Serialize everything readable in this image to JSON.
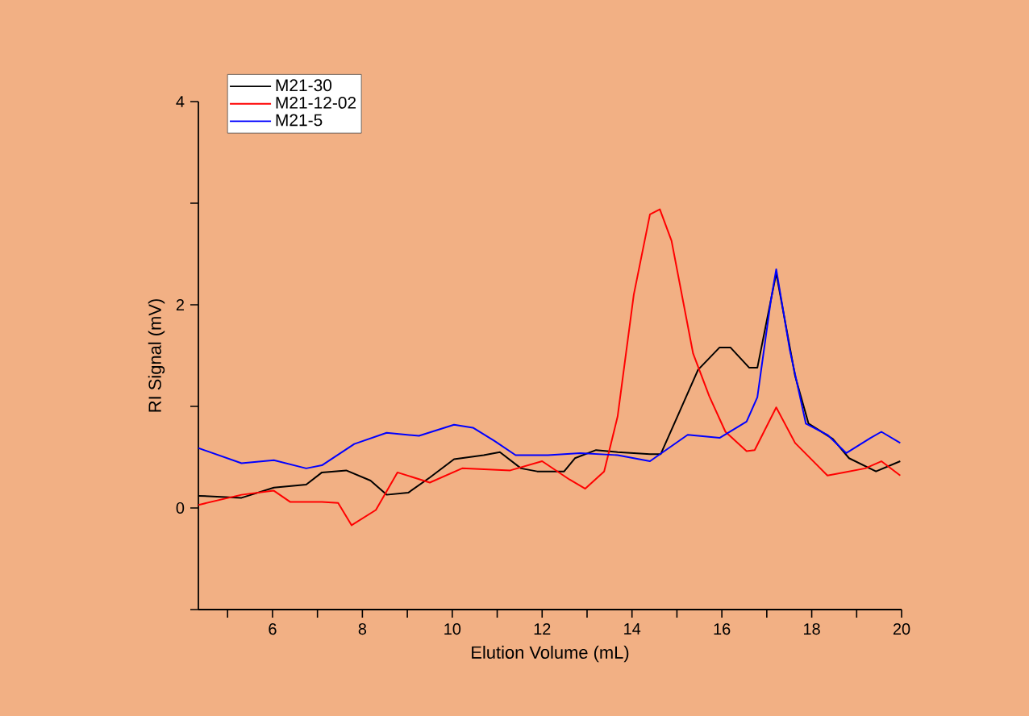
{
  "chart_data": {
    "type": "line",
    "xlabel": "Elution Volume (mL)",
    "ylabel": "RI Signal (mV)",
    "xlim": [
      4.35,
      20
    ],
    "ylim": [
      -1,
      4
    ],
    "xticks": [
      {
        "value": 5,
        "label": null
      },
      6,
      {
        "value": 7,
        "label": null
      },
      8,
      {
        "value": 9,
        "label": null
      },
      10,
      {
        "value": 11,
        "label": null
      },
      12,
      {
        "value": 13,
        "label": null
      },
      14,
      {
        "value": 15,
        "label": null
      },
      16,
      {
        "value": 17,
        "label": null
      },
      18,
      {
        "value": 19,
        "label": null
      },
      20
    ],
    "yticks": [
      {
        "value": -1,
        "label": null
      },
      0,
      {
        "value": 1,
        "label": null
      },
      2,
      {
        "value": 3,
        "label": null
      },
      4
    ],
    "grid": false,
    "legend": "top left",
    "marker": "none",
    "line_style": "solid",
    "series": [
      {
        "name": "M21-30",
        "color": "#000000",
        "x": [
          4.35,
          5.31,
          6.03,
          6.75,
          7.1,
          7.64,
          8.18,
          8.54,
          9.02,
          9.5,
          10.04,
          10.7,
          11.06,
          11.53,
          11.89,
          12.49,
          12.73,
          13.2,
          13.68,
          14.4,
          14.64,
          15.06,
          15.47,
          15.95,
          16.19,
          16.61,
          16.79,
          17.21,
          17.63,
          17.93,
          18.47,
          18.83,
          19.43,
          19.97
        ],
        "values": [
          0.12,
          0.1,
          0.2,
          0.23,
          0.35,
          0.37,
          0.27,
          0.13,
          0.15,
          0.3,
          0.48,
          0.52,
          0.55,
          0.39,
          0.36,
          0.36,
          0.49,
          0.57,
          0.55,
          0.53,
          0.53,
          0.95,
          1.36,
          1.58,
          1.58,
          1.38,
          1.38,
          2.31,
          1.3,
          0.83,
          0.68,
          0.49,
          0.36,
          0.46
        ]
      },
      {
        "name": "M21-12-02",
        "color": "#ff0000",
        "x": [
          4.35,
          5.31,
          6.03,
          6.39,
          7.1,
          7.46,
          7.76,
          8.3,
          8.78,
          9.5,
          10.22,
          11.29,
          12.0,
          12.61,
          12.96,
          13.38,
          13.68,
          14.04,
          14.4,
          14.62,
          14.88,
          15.36,
          15.72,
          16.08,
          16.55,
          16.73,
          17.21,
          17.63,
          18.35,
          18.71,
          19.19,
          19.55,
          19.97
        ],
        "values": [
          0.03,
          0.13,
          0.17,
          0.06,
          0.06,
          0.05,
          -0.17,
          -0.02,
          0.35,
          0.25,
          0.39,
          0.37,
          0.46,
          0.28,
          0.19,
          0.36,
          0.9,
          2.1,
          2.89,
          2.94,
          2.63,
          1.52,
          1.1,
          0.75,
          0.56,
          0.57,
          0.99,
          0.64,
          0.32,
          0.35,
          0.39,
          0.46,
          0.32
        ]
      },
      {
        "name": "M21-5",
        "color": "#0000ff",
        "x": [
          4.35,
          5.31,
          6.03,
          6.75,
          7.1,
          7.82,
          8.54,
          9.26,
          10.04,
          10.46,
          10.94,
          11.41,
          12.13,
          12.85,
          13.68,
          14.4,
          15.24,
          15.95,
          16.55,
          16.79,
          17.09,
          17.21,
          17.51,
          17.87,
          18.35,
          18.77,
          19.31,
          19.55,
          19.97
        ],
        "values": [
          0.59,
          0.44,
          0.47,
          0.39,
          0.42,
          0.63,
          0.74,
          0.71,
          0.82,
          0.79,
          0.66,
          0.52,
          0.52,
          0.54,
          0.52,
          0.46,
          0.72,
          0.69,
          0.85,
          1.09,
          2.04,
          2.35,
          1.56,
          0.83,
          0.72,
          0.54,
          0.69,
          0.75,
          0.64
        ]
      }
    ]
  }
}
